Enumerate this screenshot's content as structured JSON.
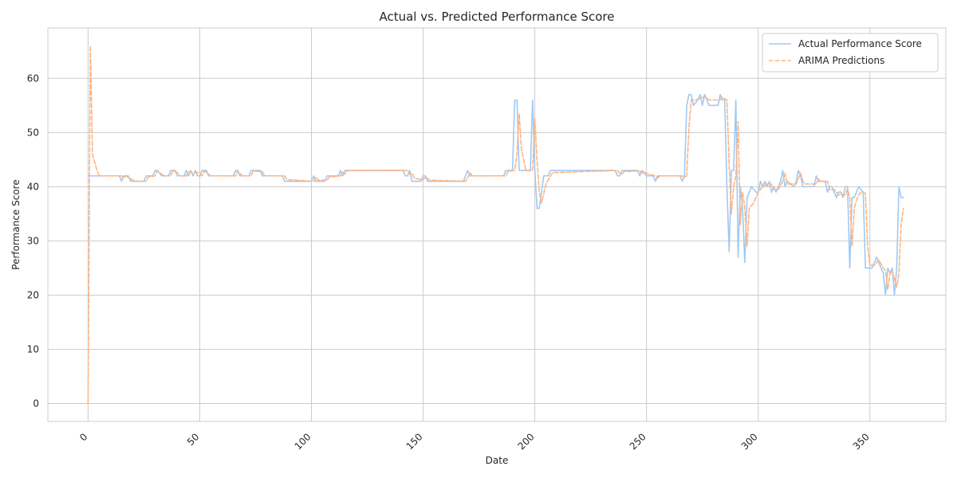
{
  "chart_data": {
    "type": "line",
    "title": "Actual vs. Predicted Performance Score",
    "xlabel": "Date",
    "ylabel": "Performance Score",
    "xlim": [
      -18,
      384
    ],
    "ylim": [
      -3.3,
      69.3
    ],
    "x_ticks": [
      0,
      50,
      100,
      150,
      200,
      250,
      300,
      350
    ],
    "y_ticks": [
      0,
      10,
      20,
      30,
      40,
      50,
      60
    ],
    "grid": true,
    "legend_position": "top-right",
    "colors": {
      "actual": "#a1c9f4",
      "predicted": "#ffb482",
      "grid": "#cccccc",
      "spine": "#cccccc",
      "background": "#ffffff"
    },
    "series": [
      {
        "name": "Actual Performance Score",
        "style": "solid",
        "points": [
          [
            0,
            42
          ],
          [
            14,
            42
          ],
          [
            15,
            41
          ],
          [
            16,
            42
          ],
          [
            18,
            42
          ],
          [
            19,
            41
          ],
          [
            20,
            41
          ],
          [
            25,
            41
          ],
          [
            26,
            42
          ],
          [
            29,
            42
          ],
          [
            30,
            43
          ],
          [
            31,
            43
          ],
          [
            33,
            42
          ],
          [
            36,
            42
          ],
          [
            37,
            43
          ],
          [
            39,
            43
          ],
          [
            40,
            42
          ],
          [
            43,
            42
          ],
          [
            44,
            43
          ],
          [
            45,
            42
          ],
          [
            46,
            43
          ],
          [
            47,
            42
          ],
          [
            48,
            43
          ],
          [
            49,
            42
          ],
          [
            50,
            42
          ],
          [
            51,
            43
          ],
          [
            53,
            43
          ],
          [
            54,
            42
          ],
          [
            65,
            42
          ],
          [
            66,
            43
          ],
          [
            67,
            43
          ],
          [
            68,
            42
          ],
          [
            72,
            42
          ],
          [
            73,
            43
          ],
          [
            77,
            43
          ],
          [
            78,
            42
          ],
          [
            87,
            42
          ],
          [
            88,
            41
          ],
          [
            100,
            41
          ],
          [
            101,
            42
          ],
          [
            102,
            41
          ],
          [
            106,
            41
          ],
          [
            107,
            42
          ],
          [
            112,
            42
          ],
          [
            113,
            43
          ],
          [
            114,
            42
          ],
          [
            115,
            43
          ],
          [
            141,
            43
          ],
          [
            142,
            42
          ],
          [
            143,
            42
          ],
          [
            144,
            43
          ],
          [
            145,
            41
          ],
          [
            149,
            41
          ],
          [
            150,
            42
          ],
          [
            151,
            42
          ],
          [
            152,
            41
          ],
          [
            168,
            41
          ],
          [
            169,
            42
          ],
          [
            170,
            43
          ],
          [
            171,
            42
          ],
          [
            186,
            42
          ],
          [
            187,
            43
          ],
          [
            190,
            43
          ],
          [
            191,
            56
          ],
          [
            192,
            56
          ],
          [
            193,
            43
          ],
          [
            198,
            43
          ],
          [
            199,
            56
          ],
          [
            200,
            43
          ],
          [
            201,
            36
          ],
          [
            202,
            36
          ],
          [
            204,
            42
          ],
          [
            206,
            42
          ],
          [
            207,
            43
          ],
          [
            236,
            43
          ],
          [
            237,
            42
          ],
          [
            238,
            42
          ],
          [
            239,
            43
          ],
          [
            246,
            43
          ],
          [
            247,
            42
          ],
          [
            248,
            43
          ],
          [
            250,
            42
          ],
          [
            253,
            42
          ],
          [
            254,
            41
          ],
          [
            255,
            42
          ],
          [
            265,
            42
          ],
          [
            266,
            41
          ],
          [
            267,
            42
          ],
          [
            268,
            55
          ],
          [
            269,
            57
          ],
          [
            270,
            57
          ],
          [
            271,
            55
          ],
          [
            273,
            56
          ],
          [
            274,
            57
          ],
          [
            275,
            55
          ],
          [
            276,
            57
          ],
          [
            277,
            56
          ],
          [
            278,
            55
          ],
          [
            282,
            55
          ],
          [
            283,
            57
          ],
          [
            284,
            56
          ],
          [
            285,
            56
          ],
          [
            286,
            40
          ],
          [
            287,
            28
          ],
          [
            288,
            43
          ],
          [
            289,
            43
          ],
          [
            290,
            56
          ],
          [
            291,
            27
          ],
          [
            292,
            40
          ],
          [
            293,
            36
          ],
          [
            294,
            26
          ],
          [
            295,
            38
          ],
          [
            296,
            39
          ],
          [
            297,
            40
          ],
          [
            299,
            39
          ],
          [
            300,
            39
          ],
          [
            301,
            41
          ],
          [
            302,
            40
          ],
          [
            303,
            41
          ],
          [
            304,
            40
          ],
          [
            305,
            41
          ],
          [
            306,
            39
          ],
          [
            307,
            40
          ],
          [
            308,
            39
          ],
          [
            309,
            40
          ],
          [
            310,
            41
          ],
          [
            311,
            43
          ],
          [
            312,
            40
          ],
          [
            313,
            41
          ],
          [
            316,
            40
          ],
          [
            317,
            41
          ],
          [
            318,
            43
          ],
          [
            319,
            42
          ],
          [
            320,
            40
          ],
          [
            325,
            40
          ],
          [
            326,
            42
          ],
          [
            327,
            41
          ],
          [
            330,
            41
          ],
          [
            331,
            39
          ],
          [
            332,
            40
          ],
          [
            333,
            40
          ],
          [
            334,
            39
          ],
          [
            335,
            38
          ],
          [
            336,
            39
          ],
          [
            337,
            39
          ],
          [
            338,
            38
          ],
          [
            339,
            40
          ],
          [
            340,
            40
          ],
          [
            341,
            25
          ],
          [
            342,
            38
          ],
          [
            343,
            38
          ],
          [
            344,
            39
          ],
          [
            345,
            40
          ],
          [
            347,
            39
          ],
          [
            348,
            25
          ],
          [
            351,
            25
          ],
          [
            352,
            26
          ],
          [
            353,
            27
          ],
          [
            354,
            26
          ],
          [
            355,
            25
          ],
          [
            356,
            24
          ],
          [
            357,
            20
          ],
          [
            358,
            25
          ],
          [
            359,
            24
          ],
          [
            360,
            25
          ],
          [
            361,
            20
          ],
          [
            362,
            25
          ],
          [
            363,
            40
          ],
          [
            364,
            38
          ],
          [
            365,
            38
          ]
        ]
      },
      {
        "name": "ARIMA Predictions",
        "style": "dashed",
        "points": [
          [
            0,
            0
          ],
          [
            1,
            66
          ],
          [
            2,
            46
          ],
          [
            4,
            43
          ],
          [
            5,
            42
          ],
          [
            15,
            42
          ],
          [
            16,
            41.6
          ],
          [
            17,
            42
          ],
          [
            19,
            41.5
          ],
          [
            21,
            41
          ],
          [
            26,
            41
          ],
          [
            27,
            41.8
          ],
          [
            30,
            42
          ],
          [
            31,
            43
          ],
          [
            32,
            42.6
          ],
          [
            34,
            42
          ],
          [
            37,
            42
          ],
          [
            38,
            43
          ],
          [
            40,
            42.6
          ],
          [
            41,
            42
          ],
          [
            44,
            42
          ],
          [
            45,
            42.8
          ],
          [
            47,
            42.5
          ],
          [
            49,
            42.7
          ],
          [
            51,
            42
          ],
          [
            52,
            42.9
          ],
          [
            55,
            42
          ],
          [
            66,
            42
          ],
          [
            67,
            42.9
          ],
          [
            69,
            42
          ],
          [
            73,
            42
          ],
          [
            74,
            42.9
          ],
          [
            78,
            42.8
          ],
          [
            79,
            42
          ],
          [
            88,
            42
          ],
          [
            89,
            41.3
          ],
          [
            101,
            41
          ],
          [
            102,
            41.8
          ],
          [
            103,
            41.2
          ],
          [
            107,
            41.2
          ],
          [
            108,
            41.8
          ],
          [
            113,
            42
          ],
          [
            114,
            42.7
          ],
          [
            115,
            42.3
          ],
          [
            116,
            43
          ],
          [
            143,
            43
          ],
          [
            144,
            42.3
          ],
          [
            145,
            42.5
          ],
          [
            146,
            41.6
          ],
          [
            150,
            41.2
          ],
          [
            151,
            41.8
          ],
          [
            153,
            41.2
          ],
          [
            169,
            41
          ],
          [
            170,
            41.7
          ],
          [
            171,
            42.6
          ],
          [
            172,
            42
          ],
          [
            187,
            42
          ],
          [
            188,
            42.8
          ],
          [
            191,
            43
          ],
          [
            192,
            46
          ],
          [
            193,
            53.5
          ],
          [
            194,
            47
          ],
          [
            196,
            43
          ],
          [
            199,
            43
          ],
          [
            200,
            52.5
          ],
          [
            201,
            45
          ],
          [
            202,
            39
          ],
          [
            203,
            37
          ],
          [
            205,
            40.5
          ],
          [
            207,
            42
          ],
          [
            208,
            42.6
          ],
          [
            237,
            43
          ],
          [
            238,
            42.5
          ],
          [
            239,
            42.3
          ],
          [
            240,
            42.8
          ],
          [
            247,
            42.9
          ],
          [
            248,
            42.5
          ],
          [
            249,
            42.7
          ],
          [
            251,
            42.3
          ],
          [
            254,
            42
          ],
          [
            255,
            41.6
          ],
          [
            256,
            42
          ],
          [
            266,
            42
          ],
          [
            267,
            41.7
          ],
          [
            268,
            42
          ],
          [
            269,
            51
          ],
          [
            270,
            56
          ],
          [
            271,
            56
          ],
          [
            272,
            56
          ],
          [
            274,
            56.3
          ],
          [
            276,
            56.6
          ],
          [
            278,
            56
          ],
          [
            283,
            56
          ],
          [
            284,
            56.5
          ],
          [
            285,
            56.2
          ],
          [
            286,
            56
          ],
          [
            287,
            44
          ],
          [
            288,
            35
          ],
          [
            289,
            40
          ],
          [
            290,
            42
          ],
          [
            291,
            52
          ],
          [
            292,
            33
          ],
          [
            293,
            39
          ],
          [
            294,
            36
          ],
          [
            295,
            29
          ],
          [
            296,
            36
          ],
          [
            298,
            37
          ],
          [
            300,
            39
          ],
          [
            302,
            40
          ],
          [
            304,
            40.5
          ],
          [
            305,
            40
          ],
          [
            306,
            40.5
          ],
          [
            307,
            39.5
          ],
          [
            309,
            39.5
          ],
          [
            311,
            41
          ],
          [
            312,
            42.5
          ],
          [
            313,
            40.5
          ],
          [
            314,
            40.5
          ],
          [
            317,
            40.5
          ],
          [
            319,
            42.5
          ],
          [
            320,
            41
          ],
          [
            321,
            40.5
          ],
          [
            326,
            40.5
          ],
          [
            327,
            41.5
          ],
          [
            328,
            41
          ],
          [
            331,
            41
          ],
          [
            332,
            39.5
          ],
          [
            333,
            39.5
          ],
          [
            334,
            39.5
          ],
          [
            336,
            38.5
          ],
          [
            338,
            38.6
          ],
          [
            339,
            38.5
          ],
          [
            340,
            39.6
          ],
          [
            341,
            38
          ],
          [
            342,
            29
          ],
          [
            343,
            36
          ],
          [
            344,
            37.5
          ],
          [
            345,
            38.5
          ],
          [
            346,
            39
          ],
          [
            348,
            38.8
          ],
          [
            349,
            29
          ],
          [
            350,
            25.5
          ],
          [
            352,
            25.5
          ],
          [
            353,
            26
          ],
          [
            354,
            26.5
          ],
          [
            356,
            25
          ],
          [
            357,
            24.5
          ],
          [
            358,
            21
          ],
          [
            359,
            24
          ],
          [
            360,
            24.5
          ],
          [
            362,
            21.5
          ],
          [
            363,
            24
          ],
          [
            364,
            33
          ],
          [
            365,
            36
          ]
        ]
      }
    ]
  }
}
